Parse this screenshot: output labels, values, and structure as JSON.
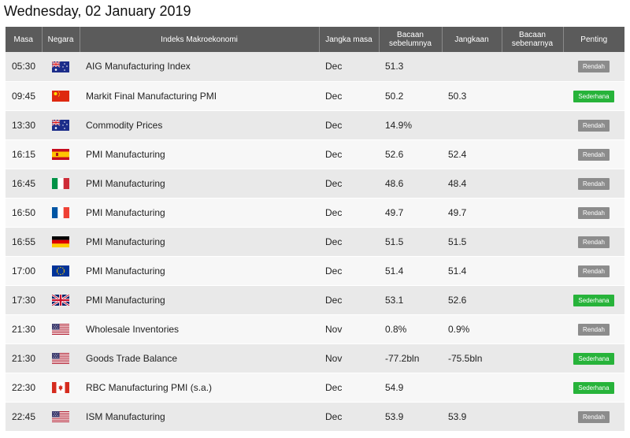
{
  "date_title": "Wednesday, 02 January 2019",
  "headers": {
    "time": "Masa",
    "country": "Negara",
    "indicator": "Indeks Makroekonomi",
    "period": "Jangka masa",
    "previous": "Bacaan sebelumnya",
    "forecast": "Jangkaan",
    "actual": "Bacaan sebenarnya",
    "importance": "Penting"
  },
  "rows": [
    {
      "time": "05:30",
      "flag": "au",
      "name": "AIG Manufacturing Index",
      "period": "Dec",
      "previous": "51.3",
      "forecast": "",
      "actual": "",
      "importance": "Rendah",
      "level": "low"
    },
    {
      "time": "09:45",
      "flag": "cn",
      "name": "Markit Final Manufacturing PMI",
      "period": "Dec",
      "previous": "50.2",
      "forecast": "50.3",
      "actual": "",
      "importance": "Sederhana",
      "level": "med"
    },
    {
      "time": "13:30",
      "flag": "au",
      "name": "Commodity Prices",
      "period": "Dec",
      "previous": "14.9%",
      "forecast": "",
      "actual": "",
      "importance": "Rendah",
      "level": "low"
    },
    {
      "time": "16:15",
      "flag": "es",
      "name": "PMI Manufacturing",
      "period": "Dec",
      "previous": "52.6",
      "forecast": "52.4",
      "actual": "",
      "importance": "Rendah",
      "level": "low"
    },
    {
      "time": "16:45",
      "flag": "it",
      "name": "PMI Manufacturing",
      "period": "Dec",
      "previous": "48.6",
      "forecast": "48.4",
      "actual": "",
      "importance": "Rendah",
      "level": "low"
    },
    {
      "time": "16:50",
      "flag": "fr",
      "name": "PMI Manufacturing",
      "period": "Dec",
      "previous": "49.7",
      "forecast": "49.7",
      "actual": "",
      "importance": "Rendah",
      "level": "low"
    },
    {
      "time": "16:55",
      "flag": "de",
      "name": "PMI Manufacturing",
      "period": "Dec",
      "previous": "51.5",
      "forecast": "51.5",
      "actual": "",
      "importance": "Rendah",
      "level": "low"
    },
    {
      "time": "17:00",
      "flag": "eu",
      "name": "PMI Manufacturing",
      "period": "Dec",
      "previous": "51.4",
      "forecast": "51.4",
      "actual": "",
      "importance": "Rendah",
      "level": "low"
    },
    {
      "time": "17:30",
      "flag": "gb",
      "name": "PMI Manufacturing",
      "period": "Dec",
      "previous": "53.1",
      "forecast": "52.6",
      "actual": "",
      "importance": "Sederhana",
      "level": "med"
    },
    {
      "time": "21:30",
      "flag": "us",
      "name": "Wholesale Inventories",
      "period": "Nov",
      "previous": "0.8%",
      "forecast": "0.9%",
      "actual": "",
      "importance": "Rendah",
      "level": "low"
    },
    {
      "time": "21:30",
      "flag": "us",
      "name": "Goods Trade Balance",
      "period": "Nov",
      "previous": "-77.2bln",
      "forecast": "-75.5bln",
      "actual": "",
      "importance": "Sederhana",
      "level": "med"
    },
    {
      "time": "22:30",
      "flag": "ca",
      "name": "RBC Manufacturing PMI (s.a.)",
      "period": "Dec",
      "previous": "54.9",
      "forecast": "",
      "actual": "",
      "importance": "Sederhana",
      "level": "med"
    },
    {
      "time": "22:45",
      "flag": "us",
      "name": "ISM Manufacturing",
      "period": "Dec",
      "previous": "53.9",
      "forecast": "53.9",
      "actual": "",
      "importance": "Rendah",
      "level": "low"
    }
  ],
  "colors": {
    "header_bg": "#5b5b5b",
    "row_odd": "#e9e9e9",
    "row_even": "#f7f7f7",
    "badge_low": "#8c8c8c",
    "badge_med": "#27b33a"
  }
}
